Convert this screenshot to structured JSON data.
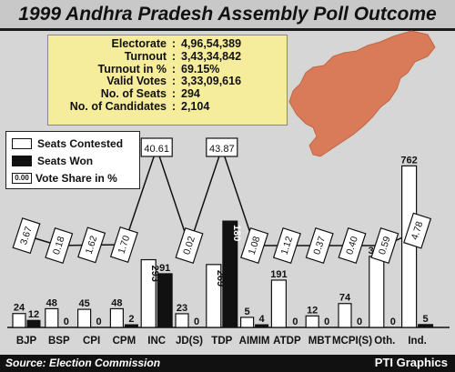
{
  "header": {
    "title": "1999 Andhra Pradesh Assembly Poll Outcome"
  },
  "stats": [
    {
      "label": "Electorate",
      "value": "4,96,54,389"
    },
    {
      "label": "Turnout",
      "value": "3,43,34,842"
    },
    {
      "label": "Turnout in %",
      "value": "69.15%"
    },
    {
      "label": "Valid Votes",
      "value": "3,33,09,616"
    },
    {
      "label": "No. of Seats",
      "value": "294"
    },
    {
      "label": "No. of Candidates",
      "value": "2,104"
    }
  ],
  "legend": {
    "contested": "Seats Contested",
    "won": "Seats Won",
    "share_sample": "0.00",
    "share": "Vote Share in %"
  },
  "footer": {
    "source": "Source: Election Commission",
    "credit": "PTI Graphics"
  },
  "colors": {
    "map": "#d97a58",
    "contested": "#ffffff",
    "won": "#111111",
    "stats_bg": "#f5ec9c"
  },
  "chart_data": {
    "type": "bar",
    "categories": [
      "BJP",
      "BSP",
      "CPI",
      "CPM",
      "INC",
      "JD(S)",
      "TDP",
      "AIMIM",
      "ATDP",
      "MBT",
      "MCPI(S)",
      "Oth.",
      "Ind."
    ],
    "series": [
      {
        "name": "Seats Contested",
        "values": [
          24,
          48,
          45,
          48,
          293,
          23,
          269,
          5,
          191,
          12,
          74,
          310,
          762
        ]
      },
      {
        "name": "Seats Won",
        "values": [
          12,
          0,
          0,
          2,
          91,
          0,
          180,
          4,
          0,
          0,
          0,
          0,
          5
        ]
      },
      {
        "name": "Vote Share in %",
        "values": [
          3.67,
          0.18,
          1.62,
          1.7,
          40.61,
          0.02,
          43.87,
          1.08,
          1.12,
          0.37,
          0.4,
          0.59,
          4.78
        ]
      }
    ],
    "share_labels": [
      "3.67",
      "0.18",
      "1.62",
      "1.70",
      "40.61",
      "0.02",
      "43.87",
      "1.08",
      "1.12",
      "0.37",
      "0.40",
      "0.59",
      "4.78"
    ],
    "title": "1999 Andhra Pradesh Assembly Poll Outcome",
    "legend": "top-left"
  }
}
